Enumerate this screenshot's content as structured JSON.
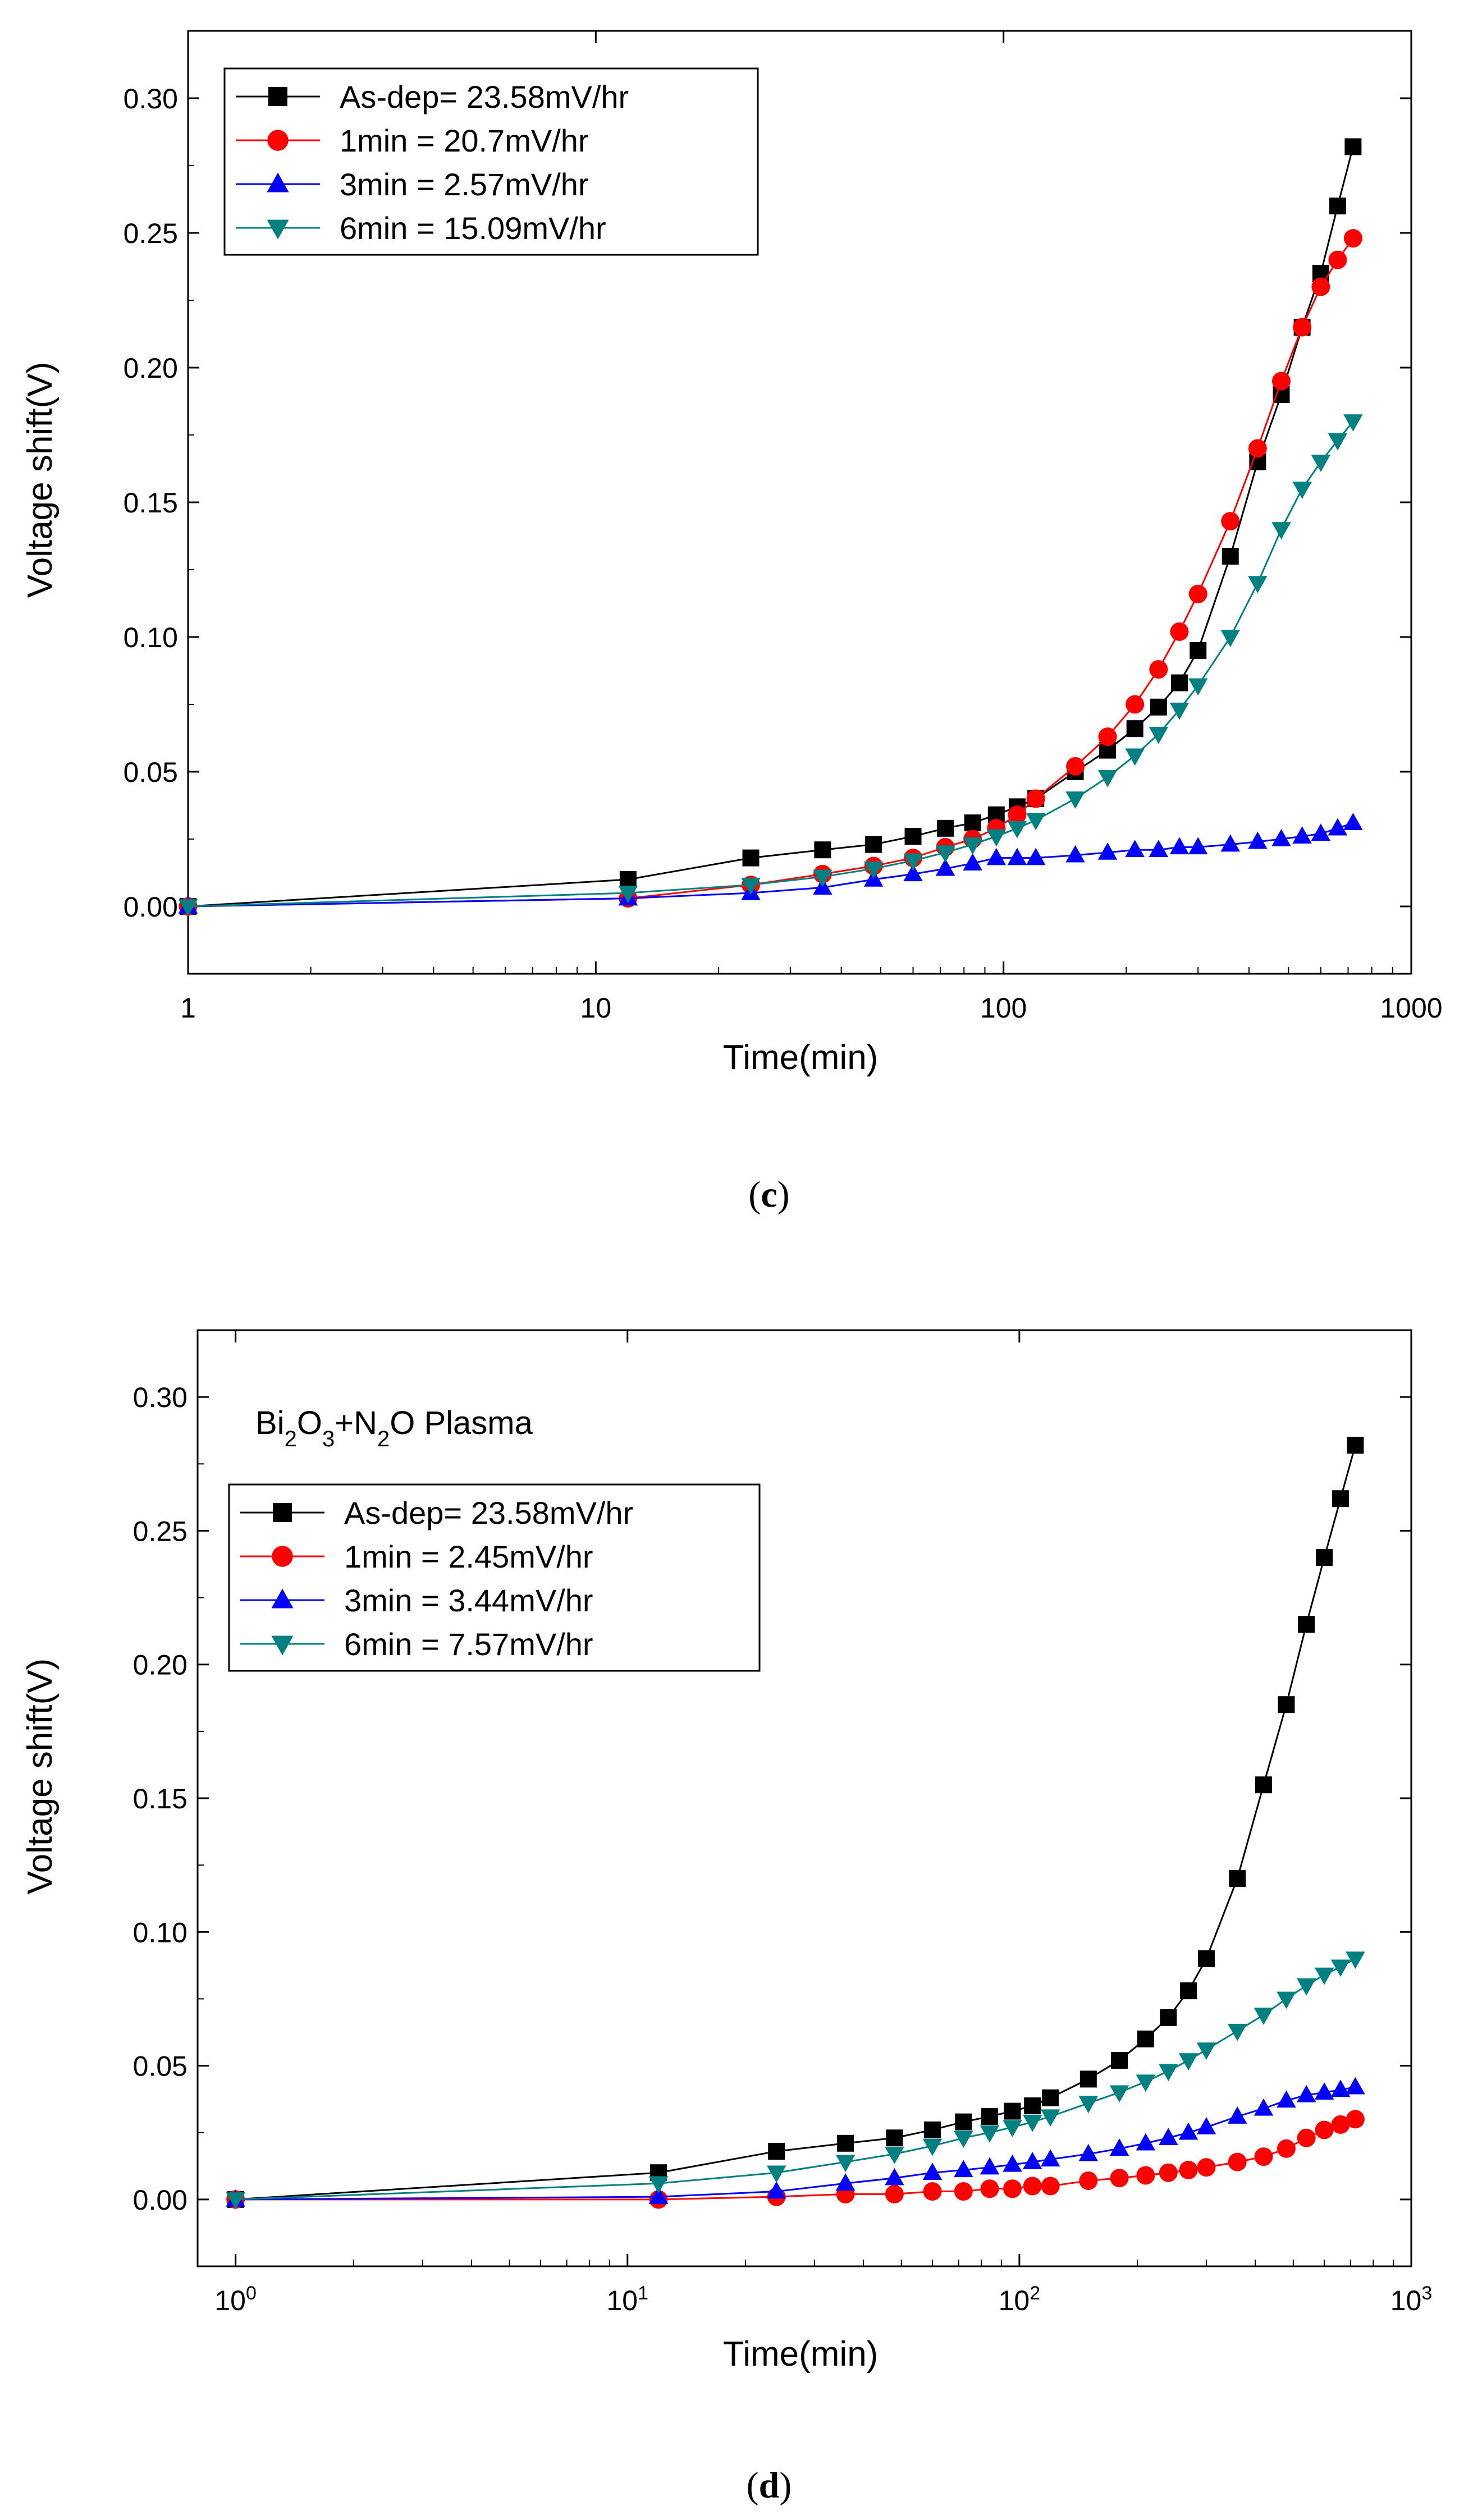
{
  "chart_data": [
    {
      "id": "c",
      "type": "line",
      "caption": "c",
      "xlabel": "Time(min)",
      "ylabel": "Voltage shift(V)",
      "xscale": "log",
      "xlim": [
        1,
        1000
      ],
      "ylim": [
        -0.025,
        0.325
      ],
      "xticks": [
        1,
        10,
        100,
        1000
      ],
      "xtick_labels": [
        "1",
        "10",
        "100",
        "1000"
      ],
      "yticks": [
        0.0,
        0.05,
        0.1,
        0.15,
        0.2,
        0.25,
        0.3
      ],
      "ytick_labels": [
        "0.00",
        "0.05",
        "0.10",
        "0.15",
        "0.20",
        "0.25",
        "0.30"
      ],
      "annotation": "",
      "legend_position": "top-left",
      "series": [
        {
          "name": "As-dep= 23.58mV/hr",
          "color": "#000000",
          "marker": "square",
          "x": [
            1,
            12,
            24,
            36,
            48,
            60,
            72,
            84,
            96,
            108,
            120,
            150,
            180,
            210,
            240,
            270,
            300,
            360,
            420,
            480,
            540,
            600,
            660,
            720
          ],
          "y": [
            0.0,
            0.01,
            0.018,
            0.021,
            0.023,
            0.026,
            0.029,
            0.031,
            0.034,
            0.037,
            0.04,
            0.05,
            0.058,
            0.066,
            0.074,
            0.083,
            0.095,
            0.13,
            0.165,
            0.19,
            0.215,
            0.235,
            0.26,
            0.282
          ]
        },
        {
          "name": "1min = 20.7mV/hr",
          "color": "#ff0000",
          "marker": "circle",
          "x": [
            1,
            12,
            24,
            36,
            48,
            60,
            72,
            84,
            96,
            108,
            120,
            150,
            180,
            210,
            240,
            270,
            300,
            360,
            420,
            480,
            540,
            600,
            660,
            720
          ],
          "y": [
            0.0,
            0.003,
            0.008,
            0.012,
            0.015,
            0.018,
            0.022,
            0.025,
            0.029,
            0.034,
            0.04,
            0.052,
            0.063,
            0.075,
            0.088,
            0.102,
            0.116,
            0.143,
            0.17,
            0.195,
            0.215,
            0.23,
            0.24,
            0.248
          ]
        },
        {
          "name": "3min = 2.57mV/hr",
          "color": "#0000ff",
          "marker": "triangle-up",
          "x": [
            1,
            12,
            24,
            36,
            48,
            60,
            72,
            84,
            96,
            108,
            120,
            150,
            180,
            210,
            240,
            270,
            300,
            360,
            420,
            480,
            540,
            600,
            660,
            720
          ],
          "y": [
            0.0,
            0.003,
            0.005,
            0.007,
            0.01,
            0.012,
            0.014,
            0.016,
            0.018,
            0.018,
            0.018,
            0.019,
            0.02,
            0.021,
            0.021,
            0.022,
            0.022,
            0.023,
            0.024,
            0.025,
            0.026,
            0.027,
            0.029,
            0.031
          ]
        },
        {
          "name": "6min = 15.09mV/hr",
          "color": "#008080",
          "marker": "triangle-down",
          "x": [
            1,
            12,
            24,
            36,
            48,
            60,
            72,
            84,
            96,
            108,
            120,
            150,
            180,
            210,
            240,
            270,
            300,
            360,
            420,
            480,
            540,
            600,
            660,
            720
          ],
          "y": [
            0.0,
            0.005,
            0.008,
            0.011,
            0.014,
            0.017,
            0.02,
            0.023,
            0.026,
            0.029,
            0.032,
            0.04,
            0.048,
            0.056,
            0.064,
            0.073,
            0.082,
            0.1,
            0.12,
            0.14,
            0.155,
            0.165,
            0.173,
            0.18
          ]
        }
      ]
    },
    {
      "id": "d",
      "type": "line",
      "caption": "d",
      "xlabel": "Time(min)",
      "ylabel": "Voltage shift(V)",
      "xscale": "log",
      "xlim": [
        0.8,
        1000
      ],
      "ylim": [
        -0.025,
        0.325
      ],
      "xticks": [
        1,
        10,
        100,
        1000
      ],
      "xtick_labels": [
        "10^0",
        "10^1",
        "10^2",
        "10^3"
      ],
      "yticks": [
        0.0,
        0.05,
        0.1,
        0.15,
        0.2,
        0.25,
        0.3
      ],
      "ytick_labels": [
        "0.00",
        "0.05",
        "0.10",
        "0.15",
        "0.20",
        "0.25",
        "0.30"
      ],
      "annotation": "Bi2O3+N2O Plasma",
      "legend_position": "top-left",
      "series": [
        {
          "name": "As-dep= 23.58mV/hr",
          "color": "#000000",
          "marker": "square",
          "x": [
            1,
            12,
            24,
            36,
            48,
            60,
            72,
            84,
            96,
            108,
            120,
            150,
            180,
            210,
            240,
            270,
            300,
            360,
            420,
            480,
            540,
            600,
            660,
            720
          ],
          "y": [
            0.0,
            0.01,
            0.018,
            0.021,
            0.023,
            0.026,
            0.029,
            0.031,
            0.033,
            0.035,
            0.038,
            0.045,
            0.052,
            0.06,
            0.068,
            0.078,
            0.09,
            0.12,
            0.155,
            0.185,
            0.215,
            0.24,
            0.262,
            0.282
          ]
        },
        {
          "name": "1min = 2.45mV/hr",
          "color": "#ff0000",
          "marker": "circle",
          "x": [
            1,
            12,
            24,
            36,
            48,
            60,
            72,
            84,
            96,
            108,
            120,
            150,
            180,
            210,
            240,
            270,
            300,
            360,
            420,
            480,
            540,
            600,
            660,
            720
          ],
          "y": [
            0.0,
            0.0,
            0.001,
            0.002,
            0.002,
            0.003,
            0.003,
            0.004,
            0.004,
            0.005,
            0.005,
            0.007,
            0.008,
            0.009,
            0.01,
            0.011,
            0.012,
            0.014,
            0.016,
            0.019,
            0.023,
            0.026,
            0.028,
            0.03
          ]
        },
        {
          "name": "3min = 3.44mV/hr",
          "color": "#0000ff",
          "marker": "triangle-up",
          "x": [
            1,
            12,
            24,
            36,
            48,
            60,
            72,
            84,
            96,
            108,
            120,
            150,
            180,
            210,
            240,
            270,
            300,
            360,
            420,
            480,
            540,
            600,
            660,
            720
          ],
          "y": [
            0.0,
            0.001,
            0.003,
            0.006,
            0.008,
            0.01,
            0.011,
            0.012,
            0.013,
            0.014,
            0.015,
            0.017,
            0.019,
            0.021,
            0.023,
            0.025,
            0.027,
            0.031,
            0.034,
            0.037,
            0.039,
            0.04,
            0.041,
            0.042
          ]
        },
        {
          "name": "6min = 7.57mV/hr",
          "color": "#008080",
          "marker": "triangle-down",
          "x": [
            1,
            12,
            24,
            36,
            48,
            60,
            72,
            84,
            96,
            108,
            120,
            150,
            180,
            210,
            240,
            270,
            300,
            360,
            420,
            480,
            540,
            600,
            660,
            720
          ],
          "y": [
            0.0,
            0.006,
            0.01,
            0.014,
            0.017,
            0.02,
            0.023,
            0.025,
            0.027,
            0.029,
            0.031,
            0.036,
            0.04,
            0.044,
            0.048,
            0.052,
            0.056,
            0.063,
            0.069,
            0.075,
            0.08,
            0.084,
            0.087,
            0.09
          ]
        }
      ]
    }
  ]
}
